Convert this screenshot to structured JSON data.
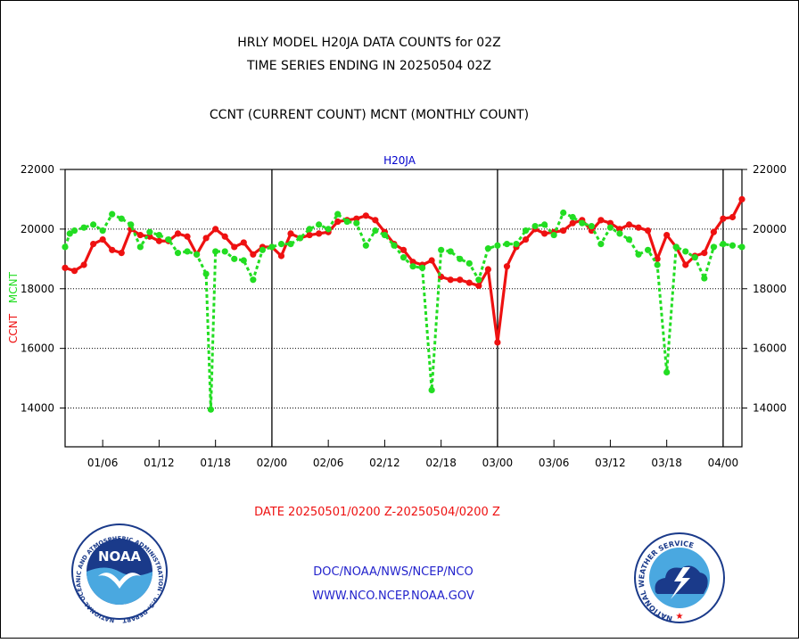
{
  "header": {
    "title_line1": "HRLY MODEL H20JA DATA COUNTS for 02Z",
    "title_line2": "TIME SERIES ENDING IN 20250504 02Z",
    "subtitle": "CCNT (CURRENT COUNT) MCNT (MONTHLY COUNT)"
  },
  "footer": {
    "date_range": "DATE 20250501/0200 Z-20250504/0200 Z",
    "org_line": "DOC/NOAA/NWS/NCEP/NCO",
    "url_line": "WWW.NCO.NCEP.NOAA.GOV"
  },
  "logos": {
    "noaa_text": "NOAA",
    "noaa_ring_text": "NATIONAL OCEANIC AND ATMOSPHERIC ADMINISTRATION · U.S. DEPARTMENT OF COMMERCE",
    "nws_ring_text": "NATIONAL WEATHER SERVICE"
  },
  "colors": {
    "ccnt": "#ee1111",
    "mcnt": "#22dd22",
    "text": "#000000",
    "plot_title": "#0000cc",
    "footer_red": "#ee1111",
    "footer_blue": "#2222cc"
  },
  "chart_data": {
    "type": "line",
    "title": "H20JA",
    "ylabel_parts": [
      {
        "text": "CCNT",
        "color": "#ee1111"
      },
      {
        "text": "MCNT",
        "color": "#22dd22"
      }
    ],
    "ylim": [
      12700,
      22000
    ],
    "yticks": [
      "14000",
      "16000",
      "18000",
      "20000",
      "22000"
    ],
    "grid_y": [
      14000,
      16000,
      18000,
      20000
    ],
    "x_tick_labels": [
      "01/06",
      "01/12",
      "01/18",
      "02/00",
      "02/06",
      "02/12",
      "02/18",
      "03/00",
      "03/06",
      "03/12",
      "03/18",
      "04/00"
    ],
    "x_tick_hours": [
      6,
      12,
      18,
      24,
      30,
      36,
      42,
      48,
      54,
      60,
      66,
      72
    ],
    "day_separators_hours": [
      24,
      48,
      72
    ],
    "xlim_hours": [
      2,
      74
    ],
    "x_unit": "hours from 01/00",
    "series": [
      {
        "key": "ccnt",
        "x_hours": [
          2,
          3,
          4,
          5,
          6,
          7,
          8,
          9,
          10,
          11,
          12,
          13,
          14,
          15,
          16,
          17,
          18,
          19,
          20,
          21,
          22,
          23,
          24,
          25,
          26,
          27,
          28,
          29,
          30,
          31,
          32,
          33,
          34,
          35,
          36,
          37,
          38,
          39,
          40,
          41,
          42,
          43,
          44,
          45,
          46,
          47,
          48,
          49,
          50,
          51,
          52,
          53,
          54,
          55,
          56,
          57,
          58,
          59,
          60,
          61,
          62,
          63,
          64,
          65,
          66,
          67,
          68,
          69,
          70,
          71,
          72,
          73,
          74
        ],
        "values": [
          18700,
          18600,
          18800,
          19500,
          19650,
          19300,
          19200,
          20000,
          19800,
          19750,
          19600,
          19600,
          19850,
          19750,
          19150,
          19700,
          20000,
          19750,
          19400,
          19550,
          19150,
          19400,
          19400,
          19100,
          19850,
          19700,
          19800,
          19850,
          19900,
          20250,
          20300,
          20350,
          20450,
          20300,
          19900,
          19500,
          19300,
          18900,
          18800,
          18950,
          18400,
          18300,
          18300,
          18200,
          18100,
          18650,
          16200,
          18750,
          19400,
          19650,
          20000,
          19850,
          19900,
          19950,
          20200,
          20300,
          19950,
          20300,
          20200,
          20000,
          20150,
          20050,
          19950,
          19000,
          19800,
          19400,
          18800,
          19100,
          19200,
          19900,
          20350,
          20400,
          21000
        ]
      },
      {
        "key": "mcnt",
        "x_hours": [
          2,
          2.5,
          3,
          4,
          5,
          6,
          7,
          8,
          9,
          10,
          11,
          12,
          13,
          14,
          15,
          16,
          17,
          17.5,
          18,
          19,
          20,
          21,
          22,
          23,
          24,
          25,
          26,
          27,
          28,
          29,
          30,
          31,
          32,
          33,
          34,
          35,
          36,
          37,
          38,
          39,
          40,
          41,
          42,
          43,
          44,
          45,
          46,
          47,
          48,
          49,
          50,
          51,
          52,
          53,
          54,
          55,
          56,
          57,
          58,
          59,
          60,
          61,
          62,
          63,
          64,
          65,
          66,
          67,
          68,
          69,
          70,
          71,
          72,
          73,
          74
        ],
        "values": [
          19400,
          19850,
          19950,
          20050,
          20150,
          19950,
          20500,
          20350,
          20150,
          19400,
          19900,
          19800,
          19650,
          19200,
          19250,
          19150,
          18500,
          13950,
          19250,
          19250,
          19000,
          18950,
          18300,
          19300,
          19400,
          19500,
          19500,
          19700,
          20000,
          20150,
          20000,
          20500,
          20250,
          20200,
          19450,
          19950,
          19800,
          19450,
          19050,
          18750,
          18700,
          14600,
          19300,
          19250,
          19000,
          18850,
          18300,
          19350,
          19450,
          19500,
          19500,
          19950,
          20100,
          20150,
          19800,
          20550,
          20400,
          20200,
          20100,
          19500,
          20050,
          19850,
          19650,
          19150,
          19300,
          18800,
          15200,
          19400,
          19250,
          19050,
          18350,
          19400,
          19500,
          19450,
          19400
        ]
      }
    ]
  }
}
